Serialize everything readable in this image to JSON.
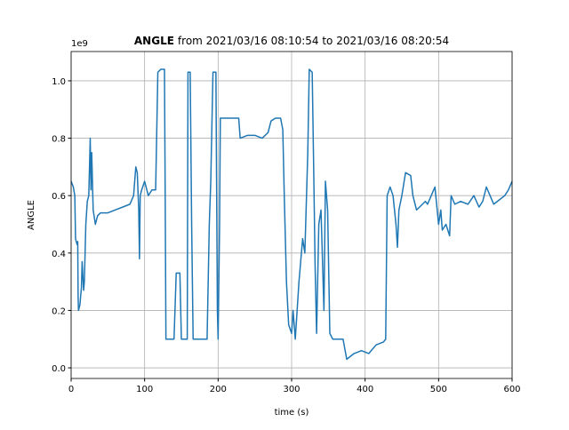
{
  "chart_data": {
    "type": "line",
    "title": [
      "ANGLE",
      "from 2021/03/16 08:10:54 to 2021/03/16 08:20:54"
    ],
    "x_label": "time (s)",
    "y_label": "ANGLE",
    "y_offset_label": "1e9",
    "xlim": [
      0,
      600
    ],
    "xticks": [
      0,
      100,
      200,
      300,
      400,
      500,
      600
    ],
    "ylim": [
      -0.037,
      1.102
    ],
    "yticks": [
      {
        "value": 0.0,
        "label": "0.0"
      },
      0.2,
      0.4,
      0.6,
      0.8,
      {
        "value": 1.0,
        "label": "1.0"
      }
    ],
    "grid": true,
    "x": [
      0,
      3,
      5,
      6,
      8,
      9,
      9.5,
      10,
      12,
      14,
      15,
      17,
      18,
      20,
      22,
      24,
      25,
      26,
      27,
      28,
      30,
      33,
      36,
      40,
      50,
      60,
      70,
      80,
      85,
      88,
      90,
      92,
      93,
      94,
      96,
      100,
      105,
      110,
      115,
      118,
      122,
      127,
      128,
      129,
      135,
      140,
      143,
      148,
      150,
      155,
      158,
      159,
      162,
      164,
      166,
      170,
      175,
      180,
      185,
      188,
      190,
      193,
      197,
      199,
      200,
      202,
      203,
      210,
      220,
      228,
      230,
      240,
      250,
      260,
      268,
      272,
      278,
      285,
      288,
      290,
      293,
      296,
      300,
      302,
      305,
      310,
      315,
      318,
      322,
      324,
      328,
      330,
      332,
      334,
      337,
      340,
      344,
      346,
      349,
      352,
      356,
      365,
      370,
      375,
      385,
      395,
      405,
      415,
      425,
      428,
      430,
      434,
      438,
      442,
      444,
      446,
      450,
      455,
      462,
      465,
      470,
      478,
      482,
      485,
      490,
      495,
      500,
      503,
      505,
      510,
      515,
      517,
      522,
      530,
      540,
      548,
      555,
      560,
      565,
      570,
      575,
      580,
      590,
      595,
      600
    ],
    "series": [
      {
        "name": "ANGLE",
        "color": "#1f77b4",
        "values": [
          0.65,
          0.63,
          0.6,
          0.45,
          0.43,
          0.44,
          0.25,
          0.2,
          0.22,
          0.28,
          0.37,
          0.27,
          0.3,
          0.5,
          0.58,
          0.6,
          0.7,
          0.8,
          0.62,
          0.75,
          0.55,
          0.5,
          0.53,
          0.54,
          0.54,
          0.55,
          0.56,
          0.57,
          0.6,
          0.7,
          0.68,
          0.55,
          0.38,
          0.6,
          0.62,
          0.65,
          0.6,
          0.62,
          0.62,
          1.03,
          1.04,
          1.04,
          0.6,
          0.1,
          0.1,
          0.1,
          0.33,
          0.33,
          0.1,
          0.1,
          0.1,
          1.03,
          1.03,
          0.5,
          0.1,
          0.1,
          0.1,
          0.1,
          0.1,
          0.5,
          0.65,
          1.03,
          1.03,
          0.2,
          0.1,
          0.5,
          0.87,
          0.87,
          0.87,
          0.87,
          0.8,
          0.81,
          0.81,
          0.8,
          0.82,
          0.86,
          0.87,
          0.87,
          0.83,
          0.6,
          0.3,
          0.15,
          0.12,
          0.2,
          0.1,
          0.3,
          0.45,
          0.4,
          0.75,
          1.04,
          1.03,
          0.7,
          0.35,
          0.12,
          0.5,
          0.55,
          0.2,
          0.65,
          0.55,
          0.12,
          0.1,
          0.1,
          0.1,
          0.03,
          0.05,
          0.06,
          0.05,
          0.08,
          0.09,
          0.1,
          0.6,
          0.63,
          0.6,
          0.5,
          0.42,
          0.55,
          0.6,
          0.68,
          0.67,
          0.6,
          0.55,
          0.57,
          0.58,
          0.57,
          0.6,
          0.63,
          0.5,
          0.55,
          0.48,
          0.5,
          0.46,
          0.6,
          0.57,
          0.58,
          0.57,
          0.6,
          0.56,
          0.58,
          0.63,
          0.6,
          0.57,
          0.58,
          0.6,
          0.62,
          0.65
        ]
      }
    ]
  }
}
